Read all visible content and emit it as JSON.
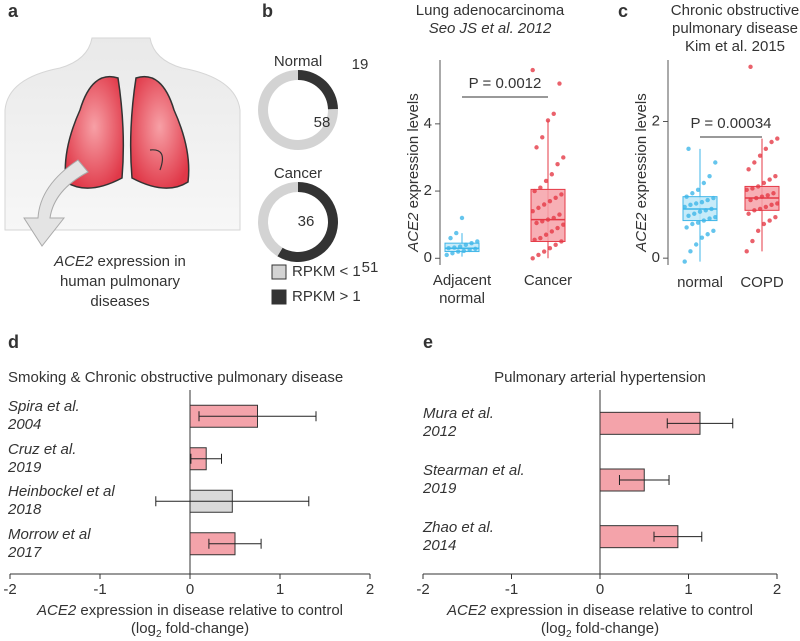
{
  "panel_labels": [
    "a",
    "b",
    "c",
    "d",
    "e"
  ],
  "illustration": {
    "caption_italic": "ACE2",
    "caption": "expression in\nhuman pulmonary\ndiseases"
  },
  "chart_data": [
    {
      "type": "donut",
      "title": "Lung adenocarcinoma",
      "subtitle": "Seo JS et al. 2012",
      "categories": [
        "RPKM < 1",
        "RPKM > 1"
      ],
      "colors": [
        "#d3d3d3",
        "#333333"
      ],
      "series": [
        {
          "name": "Normal",
          "values": [
            58,
            19
          ]
        },
        {
          "name": "Cancer",
          "values": [
            36,
            51
          ]
        }
      ]
    },
    {
      "type": "box",
      "ylabel_italic": "ACE2",
      "ylabel": "expression levels",
      "categories": [
        "Adjacent\nnormal",
        "Cancer"
      ],
      "colors": [
        "#3fb6e8",
        "#e53946"
      ],
      "fills": [
        "#bde8f8",
        "#f6a1a8"
      ],
      "boxes": [
        {
          "min": 0.05,
          "q1": 0.2,
          "median": 0.3,
          "q3": 0.45,
          "max": 0.75
        },
        {
          "min": 0,
          "q1": 0.5,
          "median": 1.15,
          "q3": 2.05,
          "max": 4.1
        }
      ],
      "points": [
        [
          0.1,
          0.15,
          0.2,
          0.22,
          0.25,
          0.28,
          0.3,
          0.32,
          0.35,
          0.4,
          0.45,
          0.5,
          0.6,
          0.75,
          1.2
        ],
        [
          0,
          0.1,
          0.2,
          0.3,
          0.4,
          0.5,
          0.55,
          0.6,
          0.7,
          0.8,
          0.9,
          1.0,
          1.05,
          1.1,
          1.15,
          1.2,
          1.3,
          1.4,
          1.5,
          1.6,
          1.7,
          1.8,
          1.9,
          2.0,
          2.1,
          2.3,
          2.5,
          2.8,
          3.0,
          3.3,
          3.6,
          4.1,
          4.3,
          5.2,
          5.6
        ]
      ],
      "annotation": "P = 0.0012",
      "ylim": [
        -0.2,
        5.9
      ],
      "yticks": [
        0,
        2,
        4
      ]
    },
    {
      "type": "box",
      "title": "Chronic obstructive\npulmonary disease",
      "subtitle": "Kim et al. 2015",
      "ylabel_italic": "ACE2",
      "ylabel": "expression levels",
      "categories": [
        "normal",
        "COPD"
      ],
      "colors": [
        "#3fb6e8",
        "#e53946"
      ],
      "fills": [
        "#bde8f8",
        "#f6a1a8"
      ],
      "boxes": [
        {
          "min": -0.05,
          "q1": 0.55,
          "median": 0.72,
          "q3": 0.9,
          "max": 1.6
        },
        {
          "min": 0.1,
          "q1": 0.7,
          "median": 0.88,
          "q3": 1.05,
          "max": 1.75
        }
      ],
      "points": [
        [
          -0.05,
          0.1,
          0.2,
          0.3,
          0.35,
          0.4,
          0.45,
          0.5,
          0.52,
          0.55,
          0.58,
          0.6,
          0.62,
          0.65,
          0.68,
          0.7,
          0.72,
          0.75,
          0.78,
          0.8,
          0.82,
          0.85,
          0.88,
          0.9,
          0.95,
          1.0,
          1.1,
          1.2,
          1.4,
          1.6
        ],
        [
          0.1,
          0.25,
          0.4,
          0.5,
          0.55,
          0.6,
          0.65,
          0.7,
          0.72,
          0.75,
          0.78,
          0.8,
          0.85,
          0.88,
          0.9,
          0.92,
          0.95,
          1.0,
          1.02,
          1.05,
          1.1,
          1.15,
          1.2,
          1.3,
          1.4,
          1.5,
          1.6,
          1.7,
          1.75,
          2.8
        ]
      ],
      "annotation": "P = 0.00034",
      "ylim": [
        -0.1,
        2.9
      ],
      "yticks": [
        0,
        2
      ]
    },
    {
      "type": "hbar",
      "title": "Smoking & Chronic obstructive pulmonary disease",
      "categories": [
        "Spira et al.\n2004",
        "Cruz et al.\n2019",
        "Heinbockel et al\n2018",
        "Morrow et al\n2017"
      ],
      "values": [
        0.75,
        0.18,
        0.47,
        0.5
      ],
      "errors": [
        0.65,
        0.17,
        0.85,
        0.29
      ],
      "colors": [
        "#f4a3aa",
        "#f4a3aa",
        "#d9d9d9",
        "#f4a3aa"
      ],
      "xlim": [
        -2,
        2
      ],
      "xticks": [
        -2,
        -1,
        0,
        1,
        2
      ],
      "xlabel_italic": "ACE2",
      "xlabel": "expression in disease relative to control",
      "xlabel_unit": "(log",
      "xlabel_unit_sub": "2",
      "xlabel_unit_end": "fold-change)"
    },
    {
      "type": "hbar",
      "title": "Pulmonary arterial hypertension",
      "categories": [
        "Mura et al.\n2012",
        "Stearman et al.\n2019",
        "Zhao et al.\n2014"
      ],
      "values": [
        1.13,
        0.5,
        0.88
      ],
      "errors": [
        0.37,
        0.28,
        0.27
      ],
      "colors": [
        "#f4a3aa",
        "#f4a3aa",
        "#f4a3aa"
      ],
      "xlim": [
        -2,
        2
      ],
      "xticks": [
        -2,
        -1,
        0,
        1,
        2
      ],
      "xlabel_italic": "ACE2",
      "xlabel": "expression in disease relative to control",
      "xlabel_unit": "(log",
      "xlabel_unit_sub": "2",
      "xlabel_unit_end": "fold-change)"
    }
  ]
}
